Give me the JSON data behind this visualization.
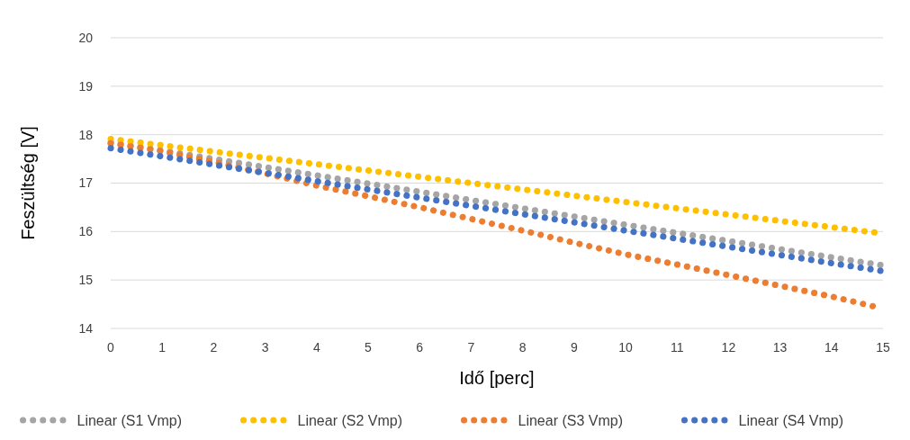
{
  "chart_data": {
    "type": "line",
    "xlabel": "Idő [perc]",
    "ylabel": "Feszültség [V]",
    "xlim": [
      0,
      15
    ],
    "xticks": [
      0,
      1,
      2,
      3,
      4,
      5,
      6,
      7,
      8,
      9,
      10,
      11,
      12,
      13,
      14,
      15
    ],
    "ylim": [
      14,
      20
    ],
    "yticks": [
      14,
      15,
      16,
      17,
      18,
      19,
      20
    ],
    "grid": "y",
    "legend": "bottom",
    "line_style": "dotted",
    "series": [
      {
        "name": "Linear (S1 Vmp)",
        "color": "#a5a5a5",
        "x": [
          0,
          5,
          10,
          15
        ],
        "values": [
          17.84,
          16.99,
          16.14,
          15.3
        ]
      },
      {
        "name": "Linear (S2 Vmp)",
        "color": "#ffc000",
        "x": [
          0,
          5,
          10,
          15
        ],
        "values": [
          17.91,
          17.26,
          16.61,
          15.96
        ]
      },
      {
        "name": "Linear (S3 Vmp)",
        "color": "#ed7d31",
        "x": [
          0,
          1,
          2,
          3,
          4,
          5,
          6,
          7,
          8,
          9,
          10,
          11,
          12,
          13,
          14,
          14.8
        ],
        "values": [
          17.82,
          17.66,
          17.44,
          17.2,
          16.95,
          16.73,
          16.5,
          16.26,
          16.02,
          15.77,
          15.53,
          15.32,
          15.1,
          14.88,
          14.66,
          14.46
        ]
      },
      {
        "name": "Linear (S4 Vmp)",
        "color": "#4472c4",
        "x": [
          0,
          5,
          10,
          15
        ],
        "values": [
          17.72,
          16.87,
          16.02,
          15.18
        ]
      }
    ]
  }
}
